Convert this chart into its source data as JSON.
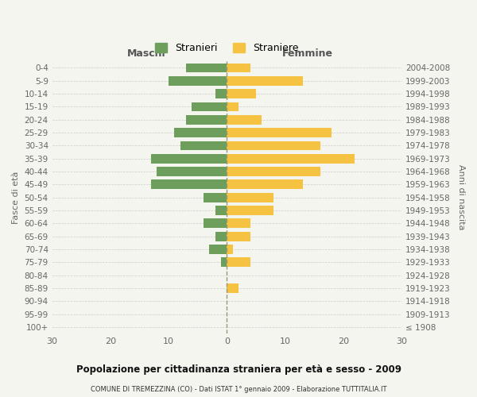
{
  "age_groups": [
    "0-4",
    "5-9",
    "10-14",
    "15-19",
    "20-24",
    "25-29",
    "30-34",
    "35-39",
    "40-44",
    "45-49",
    "50-54",
    "55-59",
    "60-64",
    "65-69",
    "70-74",
    "75-79",
    "80-84",
    "85-89",
    "90-94",
    "95-99",
    "100+"
  ],
  "birth_years": [
    "2004-2008",
    "1999-2003",
    "1994-1998",
    "1989-1993",
    "1984-1988",
    "1979-1983",
    "1974-1978",
    "1969-1973",
    "1964-1968",
    "1959-1963",
    "1954-1958",
    "1949-1953",
    "1944-1948",
    "1939-1943",
    "1934-1938",
    "1929-1933",
    "1924-1928",
    "1919-1923",
    "1914-1918",
    "1909-1913",
    "≤ 1908"
  ],
  "males": [
    7,
    10,
    2,
    6,
    7,
    9,
    8,
    13,
    12,
    13,
    4,
    2,
    4,
    2,
    3,
    1,
    0,
    0,
    0,
    0,
    0
  ],
  "females": [
    4,
    13,
    5,
    2,
    6,
    18,
    16,
    22,
    16,
    13,
    8,
    8,
    4,
    4,
    1,
    4,
    0,
    2,
    0,
    0,
    0
  ],
  "male_color": "#6d9e5b",
  "female_color": "#f5c242",
  "bg_color": "#f5f5f0",
  "grid_color": "#cccccc",
  "dashed_line_color": "#999977",
  "title": "Popolazione per cittadinanza straniera per età e sesso - 2009",
  "subtitle": "COMUNE DI TREMEZZINA (CO) - Dati ISTAT 1° gennaio 2009 - Elaborazione TUTTITALIA.IT",
  "xlabel_left": "Maschi",
  "xlabel_right": "Femmine",
  "ylabel_left": "Fasce di età",
  "ylabel_right": "Anni di nascita",
  "legend_male": "Stranieri",
  "legend_female": "Straniere",
  "xlim": 30,
  "bar_height": 0.72
}
